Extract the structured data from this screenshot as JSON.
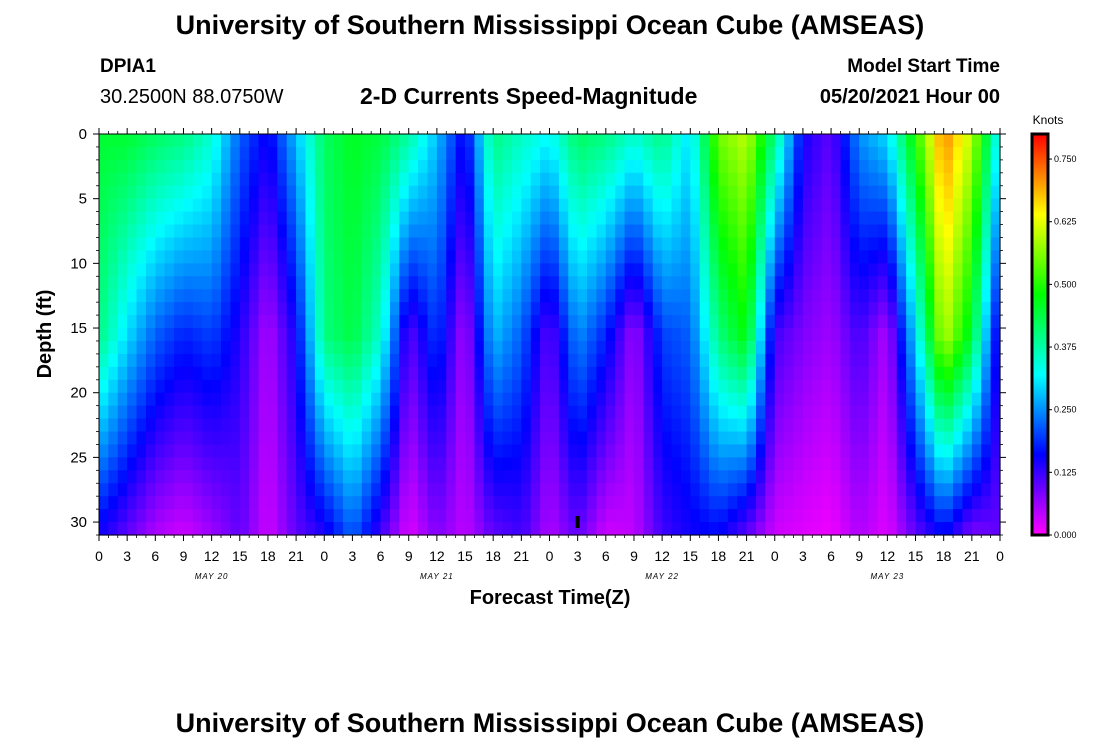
{
  "header": {
    "title": "University of Southern Mississippi Ocean Cube (AMSEAS)",
    "station": "DPIA1",
    "coordinates": "30.2500N  88.0750W",
    "subtitle": "2-D Currents Speed-Magnitude",
    "start_label": "Model Start Time",
    "start_value": "05/20/2021 Hour 00"
  },
  "footer": {
    "title": "University of Southern Mississippi Ocean Cube (AMSEAS)"
  },
  "chart_data": {
    "type": "heatmap",
    "title": "2-D Currents Speed-Magnitude",
    "xlabel": "Forecast Time(Z)",
    "ylabel": "Depth (ft)",
    "x_ticks": [
      "0",
      "3",
      "6",
      "9",
      "12",
      "15",
      "18",
      "21",
      "0",
      "3",
      "6",
      "9",
      "12",
      "15",
      "18",
      "21",
      "0",
      "3",
      "6",
      "9",
      "12",
      "15",
      "18",
      "21",
      "0",
      "3",
      "6",
      "9",
      "12",
      "15",
      "18",
      "21",
      "0"
    ],
    "x_range_hours": [
      0,
      96
    ],
    "day_labels": [
      {
        "label": "MAY 20",
        "hour": 12
      },
      {
        "label": "MAY 21",
        "hour": 36
      },
      {
        "label": "MAY 22",
        "hour": 60
      },
      {
        "label": "MAY 23",
        "hour": 84
      }
    ],
    "y_ticks": [
      "0",
      "5",
      "10",
      "15",
      "20",
      "25",
      "30"
    ],
    "y_range_ft": [
      0,
      31
    ],
    "colorbar": {
      "unit": "Knots",
      "range": [
        0,
        0.8
      ],
      "ticks": [
        "0.000",
        "0.125",
        "0.250",
        "0.375",
        "0.500",
        "0.625",
        "0.750"
      ]
    },
    "speed_profile_knots": {
      "hours": [
        0,
        3,
        6,
        9,
        12,
        15,
        18,
        21,
        24,
        27,
        30,
        33,
        36,
        39,
        42,
        45,
        48,
        51,
        54,
        57,
        60,
        63,
        66,
        69,
        72,
        75,
        78,
        81,
        84,
        87,
        90,
        93,
        96
      ],
      "surface": [
        0.45,
        0.45,
        0.42,
        0.4,
        0.35,
        0.22,
        0.15,
        0.28,
        0.42,
        0.46,
        0.44,
        0.38,
        0.28,
        0.15,
        0.4,
        0.36,
        0.32,
        0.42,
        0.4,
        0.35,
        0.4,
        0.3,
        0.55,
        0.6,
        0.4,
        0.15,
        0.1,
        0.25,
        0.3,
        0.5,
        0.72,
        0.6,
        0.3
      ],
      "mid": [
        0.4,
        0.3,
        0.22,
        0.18,
        0.2,
        0.14,
        0.05,
        0.15,
        0.4,
        0.44,
        0.35,
        0.1,
        0.2,
        0.05,
        0.28,
        0.22,
        0.1,
        0.25,
        0.18,
        0.06,
        0.2,
        0.22,
        0.4,
        0.48,
        0.12,
        0.08,
        0.06,
        0.12,
        0.05,
        0.3,
        0.6,
        0.45,
        0.12
      ],
      "bottom": [
        0.15,
        0.1,
        0.05,
        0.03,
        0.06,
        0.1,
        0.03,
        0.1,
        0.14,
        0.22,
        0.12,
        0.02,
        0.08,
        0.04,
        0.1,
        0.12,
        0.05,
        0.1,
        0.03,
        0.04,
        0.12,
        0.15,
        0.16,
        0.1,
        0.03,
        0.02,
        0.01,
        0.05,
        0.02,
        0.1,
        0.16,
        0.08,
        0.1
      ]
    },
    "marker_hour": 51,
    "marker_label": "I"
  }
}
